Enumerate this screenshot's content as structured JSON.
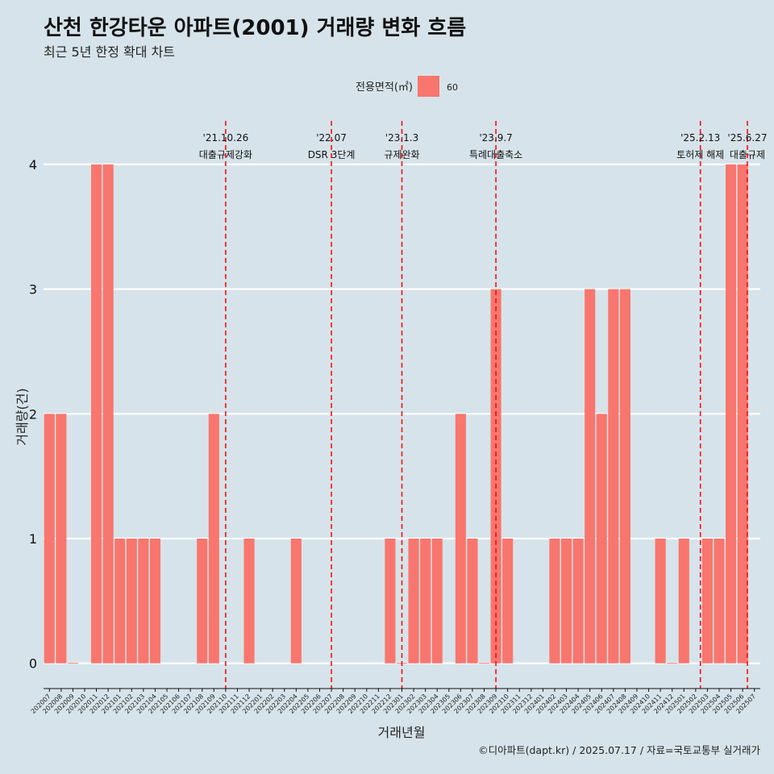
{
  "chart_data": {
    "type": "bar",
    "title": "산천 한강타운 아파트(2001) 거래량 변화 흐름",
    "subtitle": "최근 5년 한정 확대 차트",
    "xlabel": "거래년월",
    "ylabel": "거래량(건)",
    "ylim": [
      -0.17,
      4.4
    ],
    "yticks": [
      "0",
      "1",
      "2",
      "3",
      "4"
    ],
    "grid": "horizontal",
    "legend_position": "top",
    "legend": {
      "title": "전용면적(㎡)",
      "items": [
        {
          "label": "60",
          "color": "#f8766d"
        }
      ]
    },
    "bar_color": "#f8766d",
    "categories": [
      "202007",
      "202008",
      "202009",
      "202010",
      "202011",
      "202012",
      "202101",
      "202102",
      "202103",
      "202104",
      "202105",
      "202106",
      "202107",
      "202108",
      "202109",
      "202110",
      "202111",
      "202112",
      "202201",
      "202202",
      "202203",
      "202204",
      "202205",
      "202206",
      "202207",
      "202208",
      "202209",
      "202210",
      "202211",
      "202212",
      "202301",
      "202302",
      "202303",
      "202304",
      "202305",
      "202306",
      "202307",
      "202308",
      "202309",
      "202310",
      "202311",
      "202312",
      "202401",
      "202402",
      "202403",
      "202404",
      "202405",
      "202406",
      "202407",
      "202408",
      "202409",
      "202410",
      "202411",
      "202412",
      "202501",
      "202502",
      "202503",
      "202504",
      "202505",
      "202506",
      "202507"
    ],
    "values": [
      2,
      2,
      0,
      null,
      4,
      4,
      1,
      1,
      1,
      1,
      null,
      null,
      null,
      1,
      2,
      null,
      null,
      1,
      null,
      null,
      null,
      1,
      null,
      null,
      null,
      null,
      null,
      null,
      null,
      1,
      0,
      1,
      1,
      1,
      null,
      2,
      1,
      0,
      3,
      1,
      null,
      null,
      null,
      1,
      1,
      1,
      3,
      2,
      3,
      3,
      null,
      null,
      1,
      0,
      1,
      null,
      1,
      1,
      4,
      4,
      null
    ],
    "events": [
      {
        "date": "'21.10.26",
        "label": "대출규제강화",
        "x_index": 15.0
      },
      {
        "date": "'22.07",
        "label": "DSR 3단계",
        "x_index": 24.0
      },
      {
        "date": "'23.1.3",
        "label": "규제완화",
        "x_index": 30.0
      },
      {
        "date": "'23.9.7",
        "label": "특례대출축소",
        "x_index": 38.0
      },
      {
        "date": "'25.2.13",
        "label": "토허제 해제",
        "x_index": 55.4
      },
      {
        "date": "'25.6.27",
        "label": "대출규제",
        "x_index": 59.4
      }
    ],
    "event_color": "#ff0000",
    "caption": "©디아파트(dapt.kr) / 2025.07.17 / 자료=국토교통부 실거래가"
  }
}
